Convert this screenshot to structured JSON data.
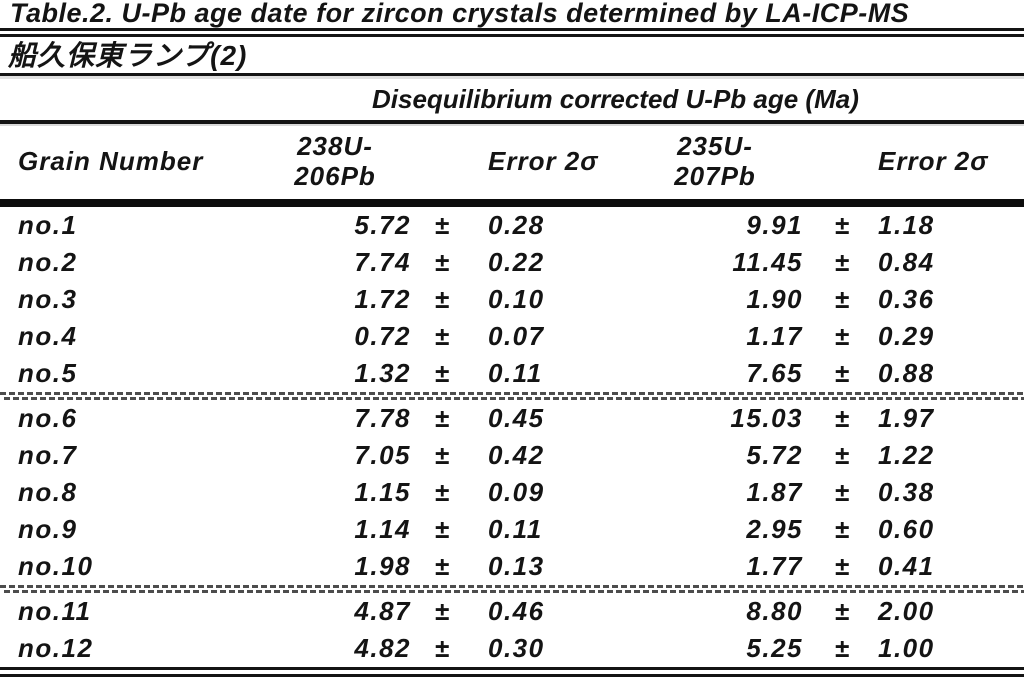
{
  "figure": {
    "title": "Table.2. U-Pb age date for zircon crystals determined by LA-ICP-MS",
    "subtitle_japanese": "船久保東ランプ(2)",
    "spanning_header": "Disequilibrium corrected U-Pb age (Ma)",
    "plus_minus": "±",
    "columns": {
      "grain": "Grain Number",
      "age238_line1": "238U-",
      "age238_line2": "206Pb",
      "error238": "Error 2σ",
      "age235_line1": "235U-",
      "age235_line2": "207Pb",
      "error235": "Error 2σ"
    },
    "rows": [
      {
        "grain": "no.1",
        "age238": "5.72",
        "err238": "0.28",
        "age235": "9.91",
        "err235": "1.18"
      },
      {
        "grain": "no.2",
        "age238": "7.74",
        "err238": "0.22",
        "age235": "11.45",
        "err235": "0.84"
      },
      {
        "grain": "no.3",
        "age238": "1.72",
        "err238": "0.10",
        "age235": "1.90",
        "err235": "0.36"
      },
      {
        "grain": "no.4",
        "age238": "0.72",
        "err238": "0.07",
        "age235": "1.17",
        "err235": "0.29"
      },
      {
        "grain": "no.5",
        "age238": "1.32",
        "err238": "0.11",
        "age235": "7.65",
        "err235": "0.88"
      },
      {
        "grain": "no.6",
        "age238": "7.78",
        "err238": "0.45",
        "age235": "15.03",
        "err235": "1.97"
      },
      {
        "grain": "no.7",
        "age238": "7.05",
        "err238": "0.42",
        "age235": "5.72",
        "err235": "1.22"
      },
      {
        "grain": "no.8",
        "age238": "1.15",
        "err238": "0.09",
        "age235": "1.87",
        "err235": "0.38"
      },
      {
        "grain": "no.9",
        "age238": "1.14",
        "err238": "0.11",
        "age235": "2.95",
        "err235": "0.60"
      },
      {
        "grain": "no.10",
        "age238": "1.98",
        "err238": "0.13",
        "age235": "1.77",
        "err235": "0.41"
      },
      {
        "grain": "no.11",
        "age238": "4.87",
        "err238": "0.46",
        "age235": "8.80",
        "err235": "2.00"
      },
      {
        "grain": "no.12",
        "age238": "4.82",
        "err238": "0.30",
        "age235": "5.25",
        "err235": "1.00"
      }
    ],
    "group_breaks_after": [
      5,
      10
    ],
    "colors": {
      "ink": "#141414",
      "paper": "#ffffff",
      "scan_dash": "#4d4d4d"
    }
  },
  "chart_data": {
    "type": "table",
    "title": "Table.2. U-Pb age date for zircon crystals determined by LA-ICP-MS",
    "subtitle": "船久保東ランプ(2)",
    "group_header": "Disequilibrium corrected U-Pb age (Ma)",
    "columns": [
      "Grain Number",
      "238U-206Pb",
      "Error 2σ",
      "235U-207Pb",
      "Error 2σ"
    ],
    "rows": [
      [
        "no.1",
        5.72,
        0.28,
        9.91,
        1.18
      ],
      [
        "no.2",
        7.74,
        0.22,
        11.45,
        0.84
      ],
      [
        "no.3",
        1.72,
        0.1,
        1.9,
        0.36
      ],
      [
        "no.4",
        0.72,
        0.07,
        1.17,
        0.29
      ],
      [
        "no.5",
        1.32,
        0.11,
        7.65,
        0.88
      ],
      [
        "no.6",
        7.78,
        0.45,
        15.03,
        1.97
      ],
      [
        "no.7",
        7.05,
        0.42,
        5.72,
        1.22
      ],
      [
        "no.8",
        1.15,
        0.09,
        1.87,
        0.38
      ],
      [
        "no.9",
        1.14,
        0.11,
        2.95,
        0.6
      ],
      [
        "no.10",
        1.98,
        0.13,
        1.77,
        0.41
      ],
      [
        "no.11",
        4.87,
        0.46,
        8.8,
        2.0
      ],
      [
        "no.12",
        4.82,
        0.3,
        5.25,
        1.0
      ]
    ]
  }
}
